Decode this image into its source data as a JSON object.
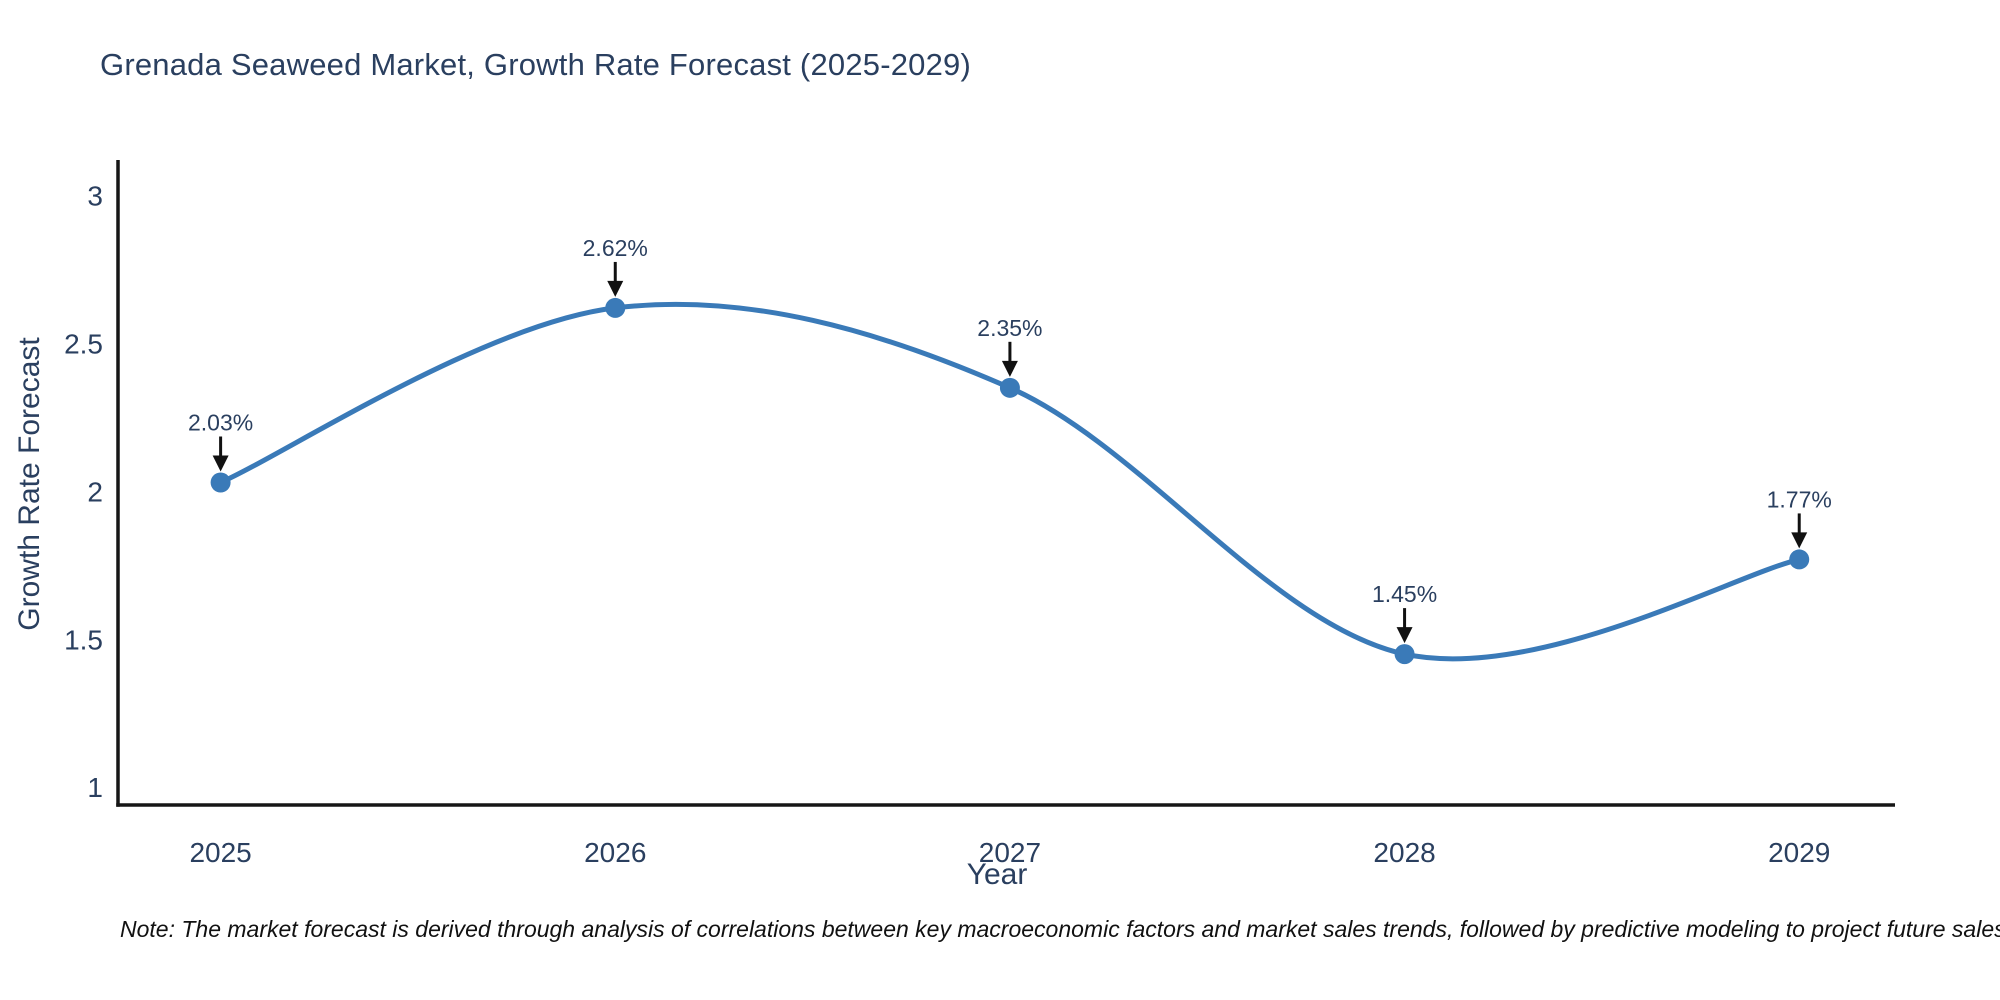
{
  "chart_data": {
    "type": "line",
    "title": "Grenada Seaweed Market, Growth Rate Forecast (2025-2029)",
    "xlabel": "Year",
    "ylabel": "Growth Rate Forecast",
    "categories": [
      "2025",
      "2026",
      "2027",
      "2028",
      "2029"
    ],
    "x": [
      2025,
      2026,
      2027,
      2028,
      2029
    ],
    "values": [
      2.03,
      2.62,
      2.35,
      1.45,
      1.77
    ],
    "point_labels": [
      "2.03%",
      "2.62%",
      "2.35%",
      "1.45%",
      "1.77%"
    ],
    "line_shape": "spline",
    "markers": true,
    "grid": false,
    "legend": "none",
    "xlim": [
      2024.74,
      2029.23
    ],
    "ylim": [
      0.94,
      3.12
    ],
    "yticks": [
      3,
      2.5,
      2,
      1.5,
      1
    ],
    "ytick_labels": [
      "3",
      "2.5",
      "2",
      "1.5",
      "1"
    ],
    "colors": {
      "line": "#3a7ab8",
      "marker": "#3a7ab8",
      "axis": "#161616",
      "text": "#2a3f5f",
      "arrow": "#111111"
    }
  },
  "note": "Note: The market forecast is derived through analysis of correlations between key macroeconomic factors and market sales trends, followed by predictive modeling to project future sales"
}
